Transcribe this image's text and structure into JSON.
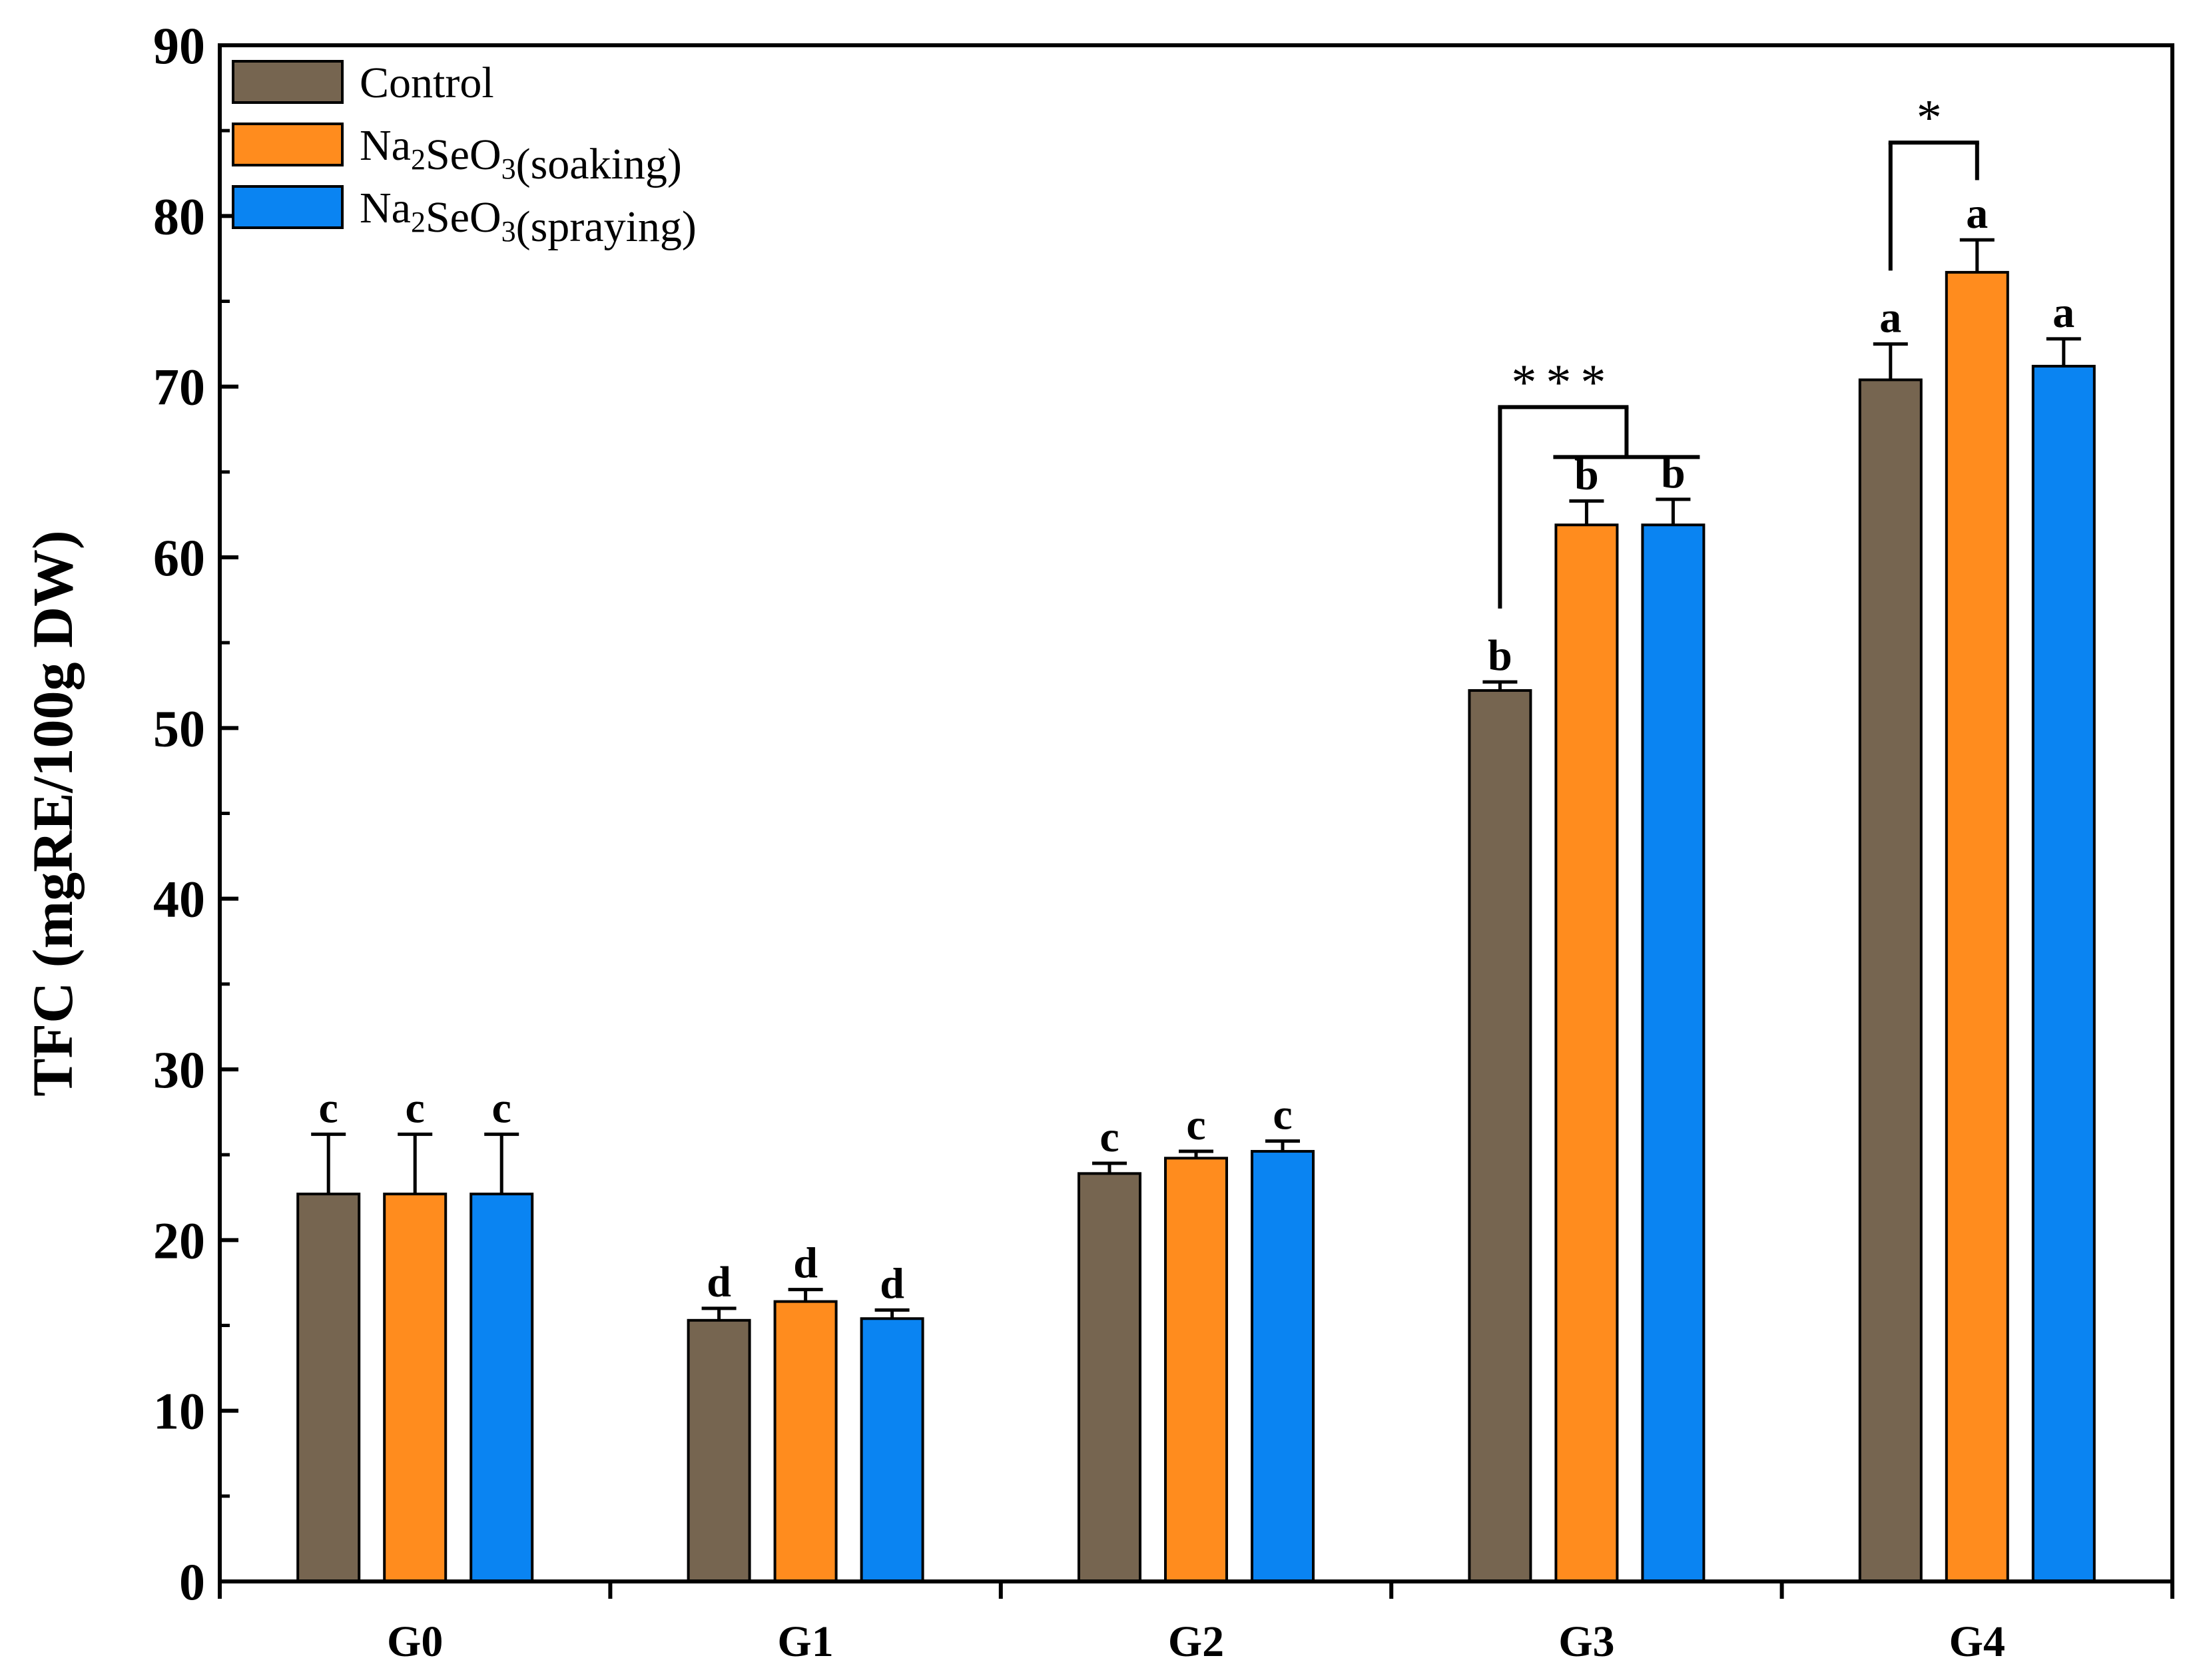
{
  "chart_data": {
    "type": "bar",
    "title": "",
    "xlabel": "",
    "ylabel": "TFC (mgRE/100g DW)",
    "ylim": [
      0,
      90
    ],
    "yticks": [
      0,
      10,
      20,
      30,
      40,
      50,
      60,
      70,
      80,
      90
    ],
    "grid": false,
    "legend_position": "top-left",
    "categories": [
      "G0",
      "G1",
      "G2",
      "G3",
      "G4"
    ],
    "series": [
      {
        "name": "Control",
        "color": "#766550",
        "values": [
          22.7,
          15.3,
          23.9,
          52.2,
          70.4
        ],
        "errors": [
          3.5,
          0.7,
          0.6,
          0.5,
          2.1
        ],
        "letters": [
          "c",
          "d",
          "c",
          "b",
          "a"
        ]
      },
      {
        "name": "Na2SeO3(soaking)",
        "color": "#FF8C1E",
        "values": [
          22.7,
          16.4,
          24.8,
          61.9,
          76.7
        ],
        "errors": [
          3.5,
          0.7,
          0.4,
          1.4,
          1.9
        ],
        "letters": [
          "c",
          "d",
          "c",
          "b",
          "a"
        ]
      },
      {
        "name": "Na2SeO3(spraying)",
        "color": "#0A84F2",
        "values": [
          22.7,
          15.4,
          25.2,
          61.9,
          71.2
        ],
        "errors": [
          3.5,
          0.5,
          0.6,
          1.5,
          1.6
        ],
        "letters": [
          "c",
          "d",
          "c",
          "b",
          "a"
        ]
      }
    ],
    "legend_labels": [
      {
        "base": "Control",
        "sub": "",
        "mid": "",
        "sub2": "",
        "tail": ""
      },
      {
        "base": "Na",
        "sub": "2",
        "mid": "SeO",
        "sub2": "3",
        "tail": "(soaking)"
      },
      {
        "base": "Na",
        "sub": "2",
        "mid": "SeO",
        "sub2": "3",
        "tail": "(spraying)"
      }
    ],
    "annotations": [
      {
        "category": "G3",
        "text": "***",
        "from_series": 0,
        "to_series": [
          1,
          2
        ]
      },
      {
        "category": "G4",
        "text": "*",
        "from_series": 0,
        "to_series": [
          1
        ]
      }
    ]
  }
}
